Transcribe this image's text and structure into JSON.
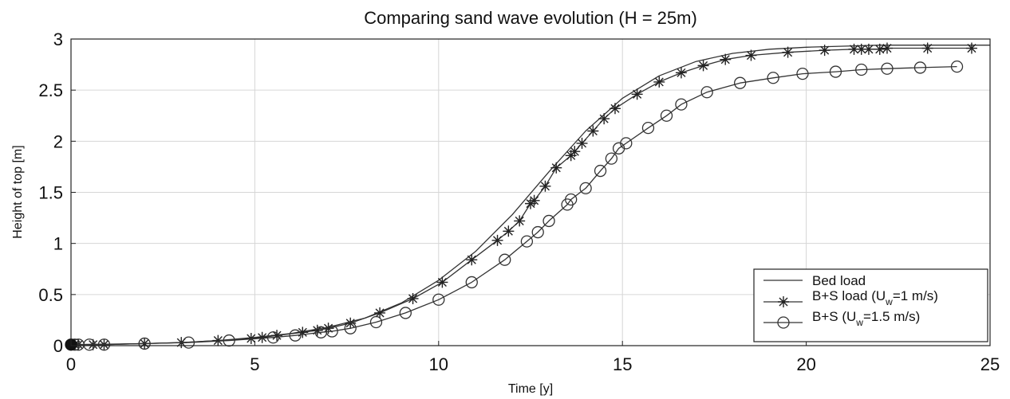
{
  "chart_data": {
    "type": "line",
    "title": "Comparing sand wave evolution (H = 25m)",
    "xlabel": "Time [y]",
    "ylabel": "Height of top [m]",
    "xlim": [
      0,
      25
    ],
    "ylim": [
      0,
      3
    ],
    "xticks": [
      "0",
      "5",
      "10",
      "15",
      "20",
      "25"
    ],
    "yticks": [
      "0",
      "0.5",
      "1",
      "1.5",
      "2",
      "2.5",
      "3"
    ],
    "grid": true,
    "legend_position": "bottom-right",
    "series": [
      {
        "name": "Bed load",
        "marker": "none",
        "x": [
          0,
          1,
          2,
          3,
          4,
          5,
          6,
          7,
          8,
          9,
          10,
          11,
          12,
          13,
          14,
          15,
          16,
          17,
          18,
          19,
          20,
          21,
          22,
          23,
          24,
          25
        ],
        "y": [
          0.01,
          0.015,
          0.02,
          0.03,
          0.05,
          0.08,
          0.12,
          0.18,
          0.27,
          0.42,
          0.64,
          0.92,
          1.28,
          1.7,
          2.1,
          2.42,
          2.64,
          2.78,
          2.86,
          2.9,
          2.92,
          2.93,
          2.94,
          2.94,
          2.94,
          2.94
        ]
      },
      {
        "name": "B+S load (U_w=1 m/s)",
        "legend_main": "B+S load (U",
        "legend_sub": "w",
        "legend_tail": "=1 m/s)",
        "marker": "star",
        "x": [
          0,
          0.1,
          0.2,
          0.6,
          0.9,
          2,
          3,
          4,
          4.9,
          5.2,
          5.6,
          6.3,
          6.7,
          7,
          7.6,
          8.4,
          9.3,
          10.1,
          10.9,
          11.6,
          11.9,
          12.2,
          12.5,
          12.6,
          12.9,
          13.2,
          13.6,
          13.7,
          13.9,
          14.2,
          14.5,
          14.8,
          15.4,
          16,
          16.6,
          17.2,
          17.8,
          18.5,
          19.5,
          20.5,
          21.3,
          21.5,
          21.7,
          22,
          22.2,
          23.3,
          24.5
        ],
        "y": [
          0.01,
          0.01,
          0.01,
          0.01,
          0.01,
          0.02,
          0.03,
          0.05,
          0.07,
          0.08,
          0.1,
          0.13,
          0.15,
          0.17,
          0.22,
          0.32,
          0.46,
          0.62,
          0.84,
          1.03,
          1.12,
          1.22,
          1.39,
          1.42,
          1.56,
          1.74,
          1.86,
          1.9,
          1.98,
          2.1,
          2.22,
          2.32,
          2.46,
          2.58,
          2.67,
          2.74,
          2.8,
          2.84,
          2.87,
          2.89,
          2.9,
          2.9,
          2.9,
          2.9,
          2.91,
          2.91,
          2.91
        ]
      },
      {
        "name": "B+S (U_w=1.5 m/s)",
        "legend_main": "B+S (U",
        "legend_sub": "w",
        "legend_tail": "=1.5 m/s)",
        "marker": "circle",
        "x": [
          0,
          0.1,
          0.2,
          0.5,
          0.9,
          2,
          3.2,
          4.3,
          5.5,
          6.1,
          6.8,
          7.1,
          7.6,
          8.3,
          9.1,
          10,
          10.9,
          11.8,
          12.4,
          12.7,
          13,
          13.5,
          13.6,
          14,
          14.4,
          14.7,
          14.9,
          15.1,
          15.7,
          16.2,
          16.6,
          17.3,
          18.2,
          19.1,
          19.9,
          20.8,
          21.5,
          22.2,
          23.1,
          24.1
        ],
        "y": [
          0.01,
          0.01,
          0.01,
          0.01,
          0.01,
          0.02,
          0.03,
          0.05,
          0.08,
          0.1,
          0.13,
          0.14,
          0.17,
          0.23,
          0.32,
          0.45,
          0.62,
          0.84,
          1.02,
          1.11,
          1.22,
          1.38,
          1.43,
          1.54,
          1.71,
          1.83,
          1.93,
          1.98,
          2.13,
          2.25,
          2.36,
          2.48,
          2.57,
          2.62,
          2.66,
          2.68,
          2.7,
          2.71,
          2.72,
          2.73
        ]
      }
    ]
  }
}
